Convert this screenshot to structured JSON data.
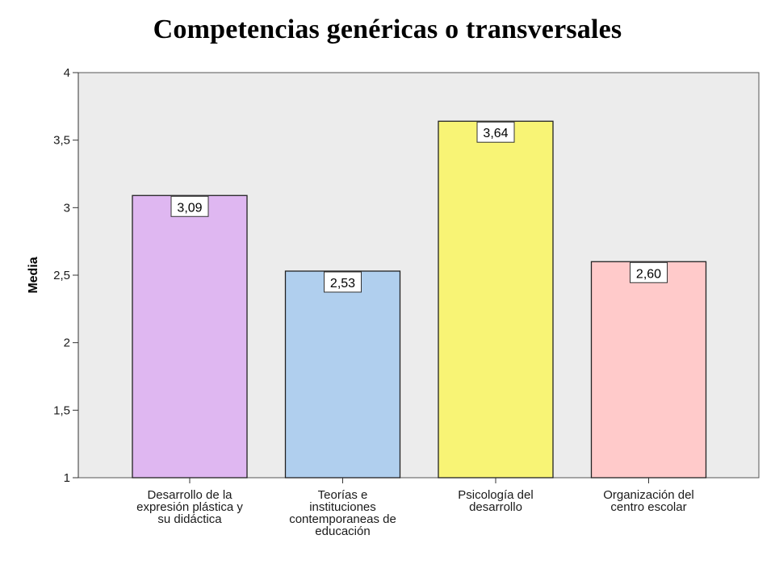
{
  "chart_data": {
    "type": "bar",
    "title": "Competencias genéricas o transversales",
    "xlabel": "",
    "ylabel": "Media",
    "ylim": [
      1,
      4
    ],
    "yticks": [
      1,
      1.5,
      2,
      2.5,
      3,
      3.5,
      4
    ],
    "ytick_labels": [
      "1",
      "1,5",
      "2",
      "2,5",
      "3",
      "3,5",
      "4"
    ],
    "categories": [
      [
        "Desarrollo de la",
        "expresión plástica y",
        "su didáctica"
      ],
      [
        "Teorías e",
        "instituciones",
        "contemporaneas de",
        "educación"
      ],
      [
        "Psicología del",
        "desarrollo"
      ],
      [
        "Organización del",
        "centro escolar"
      ]
    ],
    "values": [
      3.09,
      2.53,
      3.64,
      2.6
    ],
    "data_labels": [
      "3,09",
      "2,53",
      "3,64",
      "2,60"
    ],
    "colors": [
      "#dfb7f1",
      "#b0cfee",
      "#f8f475",
      "#ffcaca"
    ],
    "plot_background": "#ececec",
    "grid": false
  }
}
